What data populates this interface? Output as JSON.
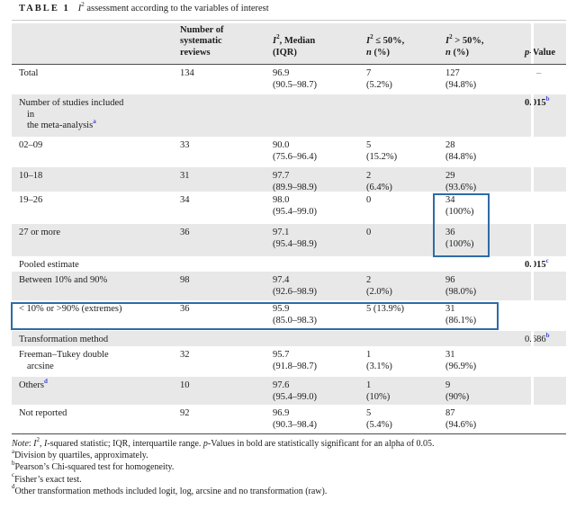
{
  "colors": {
    "shaded_row": "#e8e8e8",
    "highlight_border": "#2e6ca8",
    "superscript": "#3b43cf",
    "rule_dark": "#4d4d4d"
  },
  "title": {
    "label": "TABLE 1",
    "i": "I",
    "sup": "2",
    "rest": " assessment according to the variables of interest"
  },
  "table": {
    "header": {
      "col1": "",
      "col2": "Number of\nsystematic\nreviews",
      "col3": {
        "i": "I",
        "sup": "2",
        "rest": ", Median",
        "line2": "(IQR)"
      },
      "col4": {
        "i": "I",
        "sup": "2",
        "rest": " ≤ 50%,",
        "n": "n",
        "pct": " (%)"
      },
      "col5": {
        "i": "I",
        "sup": "2",
        "rest": " > 50%,",
        "n": "n",
        "pct": " (%)"
      },
      "col6": {
        "i": "p",
        "rest": "-Value"
      }
    },
    "rows": [
      {
        "shaded": false,
        "label": [
          {
            "t": "Total"
          }
        ],
        "n": "134",
        "median": [
          "96.9",
          "(90.5–98.7)"
        ],
        "le50": [
          "7",
          "(5.2%)"
        ],
        "gt50": [
          "127",
          "(94.8%)"
        ],
        "p": {
          "t": "–",
          "dash": true
        }
      },
      {
        "shaded": true,
        "label": [
          {
            "t": "Number of studies included"
          },
          {
            "t": "in",
            "indent": true
          },
          {
            "t": "the meta-analysis",
            "sup": "a",
            "indent": true
          }
        ],
        "n": "",
        "median": [],
        "le50": [],
        "gt50": [],
        "p": {
          "t": "0.015",
          "sup": "b",
          "bold": true
        }
      },
      {
        "shaded": false,
        "label": [
          {
            "t": "02–09"
          }
        ],
        "n": "33",
        "median": [
          "90.0",
          "(75.6–96.4)"
        ],
        "le50": [
          "5",
          "(15.2%)"
        ],
        "gt50": [
          "28",
          "(84.8%)"
        ]
      },
      {
        "shaded": true,
        "label": [
          {
            "t": "10–18"
          }
        ],
        "n": "31",
        "median": [
          "97.7",
          "(89.9–98.9)"
        ],
        "le50": [
          "2",
          "(6.4%)"
        ],
        "gt50": [
          "29",
          "(93.6%)"
        ]
      },
      {
        "shaded": false,
        "label": [
          {
            "t": "19–26"
          }
        ],
        "n": "34",
        "median": [
          "98.0",
          "(95.4–99.0)"
        ],
        "le50": [
          "0"
        ],
        "gt50": [
          "34",
          "(100%)"
        ]
      },
      {
        "shaded": true,
        "label": [
          {
            "t": "27 or more"
          }
        ],
        "n": "36",
        "median": [
          "97.1",
          "(95.4–98.9)"
        ],
        "le50": [
          "0"
        ],
        "gt50": [
          "36",
          "(100%)"
        ]
      },
      {
        "shaded": false,
        "label": [
          {
            "t": "Pooled estimate"
          }
        ],
        "n": "",
        "median": [],
        "le50": [],
        "gt50": [],
        "p": {
          "t": "0.015",
          "sup": "c",
          "bold": true
        }
      },
      {
        "shaded": true,
        "label": [
          {
            "t": "Between 10% and 90%"
          }
        ],
        "n": "98",
        "median": [
          "97.4",
          "(92.6–98.9)"
        ],
        "le50": [
          "2",
          "(2.0%)"
        ],
        "gt50": [
          "96",
          "(98.0%)"
        ]
      },
      {
        "shaded": false,
        "label": [
          {
            "t": "< 10% or >90% (extremes)"
          }
        ],
        "n": "36",
        "median": [
          "95.9",
          "(85.0–98.3)"
        ],
        "le50": [
          "5 (13.9%)"
        ],
        "gt50": [
          "31",
          "(86.1%)"
        ]
      },
      {
        "shaded": true,
        "label": [
          {
            "t": "Transformation method"
          }
        ],
        "n": "",
        "median": [],
        "le50": [],
        "gt50": [],
        "p": {
          "t": "0.686",
          "sup": "b",
          "bold": false
        }
      },
      {
        "shaded": false,
        "label": [
          {
            "t": "Freeman–Tukey double"
          },
          {
            "t": "arcsine",
            "indent": true
          }
        ],
        "n": "32",
        "median": [
          "95.7",
          "(91.8–98.7)"
        ],
        "le50": [
          "1",
          "(3.1%)"
        ],
        "gt50": [
          "31",
          "(96.9%)"
        ]
      },
      {
        "shaded": true,
        "label": [
          {
            "t": "Others",
            "sup": "d"
          }
        ],
        "n": "10",
        "median": [
          "97.6",
          "(95.4–99.0)"
        ],
        "le50": [
          "1",
          "(10%)"
        ],
        "gt50": [
          "9",
          "(90%)"
        ]
      },
      {
        "shaded": false,
        "label": [
          {
            "t": "Not reported"
          }
        ],
        "n": "92",
        "median": [
          "96.9",
          "(90.3–98.4)"
        ],
        "le50": [
          "5",
          "(5.4%)"
        ],
        "gt50": [
          "87",
          "(94.6%)"
        ]
      }
    ]
  },
  "annotations": [
    {
      "name": "highlight-100pct-cells",
      "description": "blue box around 34 (100%) and 36 (100%) cells"
    },
    {
      "name": "highlight-extremes-row",
      "description": "blue box around < 10% or >90% (extremes) row"
    }
  ],
  "footnotes": {
    "note": {
      "label": "Note",
      "colon": ": ",
      "i1": "I",
      "sup1": "2",
      "seg1": ", ",
      "i2": "I",
      "seg2": "-squared statistic; IQR, interquartile range. ",
      "i3": "p",
      "seg3": "-Values in bold are statistically significant for an alpha of 0.05."
    },
    "fns": [
      {
        "sup": "a",
        "text": "Division by quartiles, approximately."
      },
      {
        "sup": "b",
        "text": "Pearson’s Chi-squared test for homogeneity."
      },
      {
        "sup": "c",
        "text": "Fisher’s exact test."
      },
      {
        "sup": "d",
        "text": "Other transformation methods included logit, log, arcsine and no transformation (raw)."
      }
    ]
  }
}
